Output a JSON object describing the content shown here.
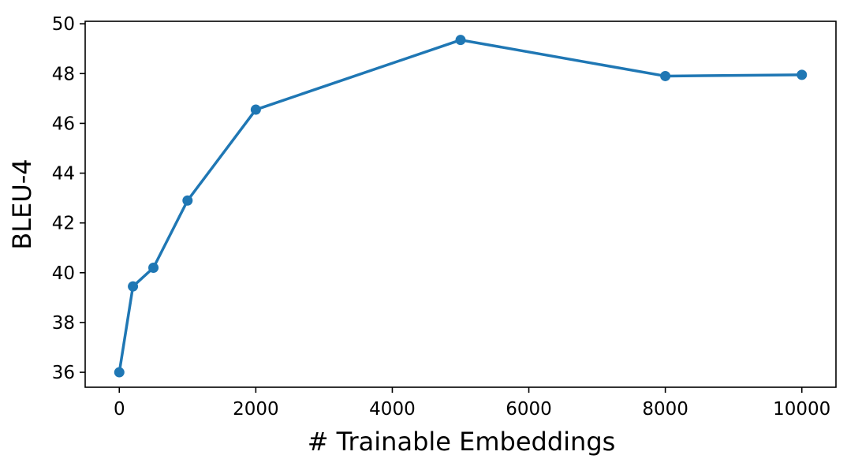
{
  "chart_data": {
    "type": "line",
    "title": "",
    "xlabel": "# Trainable Embeddings",
    "ylabel": "BLEU-4",
    "xlim": [
      -500,
      10500
    ],
    "ylim": [
      35.4,
      50.1
    ],
    "x_ticks": [
      0,
      2000,
      4000,
      6000,
      8000,
      10000
    ],
    "y_ticks": [
      36,
      38,
      40,
      42,
      44,
      46,
      48,
      50
    ],
    "grid": false,
    "legend": "none",
    "series": [
      {
        "color": "#1f77b4",
        "marker": "circle",
        "x": [
          0,
          200,
          500,
          1000,
          2000,
          5000,
          8000,
          10000
        ],
        "y": [
          36.0,
          39.45,
          40.2,
          42.9,
          46.55,
          49.35,
          47.9,
          47.95
        ]
      }
    ]
  }
}
